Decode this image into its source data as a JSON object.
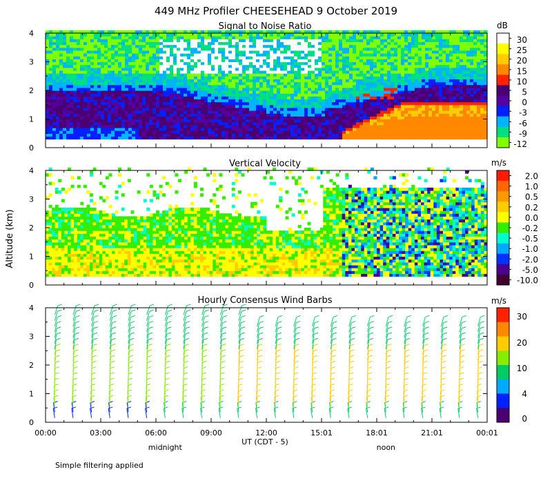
{
  "title": "449 MHz Profiler CHEESEHEAD  9 October 2019",
  "ylabel": "Altitude (km)",
  "xlabel": "UT  (CDT - 5)",
  "footnote": "Simple filtering applied",
  "x_ticks": [
    "00:00",
    "03:00",
    "06:00",
    "09:00",
    "12:00",
    "15:01",
    "18:01",
    "21:01",
    "00:01"
  ],
  "x_tick_hours": [
    0,
    3,
    6,
    9,
    12,
    15,
    18,
    21,
    24
  ],
  "local_labels": [
    {
      "text": "midnight",
      "hour": 6.5
    },
    {
      "text": "noon",
      "hour": 18.5
    }
  ],
  "chart_data": [
    {
      "type": "heatmap",
      "title": "Signal to Noise Ratio",
      "units": "dB",
      "xlim": [
        0,
        24
      ],
      "ylim": [
        0,
        4
      ],
      "y_ticks": [
        "0",
        "1",
        "2",
        "3",
        "4"
      ],
      "colorbar": {
        "labels": [
          "30",
          "25",
          "20",
          "15",
          "10",
          "5",
          "0",
          "-3",
          "-6",
          "-9",
          "-12"
        ],
        "colors": [
          "#ffffff",
          "#ffff00",
          "#ffcc00",
          "#ff8800",
          "#ff2200",
          "#4a0070",
          "#5500a0",
          "#0020ff",
          "#00b4ff",
          "#00e080",
          "#80ff00"
        ]
      }
    },
    {
      "type": "heatmap",
      "title": "Vertical Velocity",
      "units": "m/s",
      "xlim": [
        0,
        24
      ],
      "ylim": [
        0,
        4
      ],
      "y_ticks": [
        "0",
        "1",
        "2",
        "3",
        "4"
      ],
      "colorbar": {
        "labels": [
          "2.0",
          "1.0",
          "0.5",
          "0.2",
          "0.0",
          "-0.2",
          "-0.5",
          "-1.0",
          "-2.0",
          "-5.0",
          "-10.0"
        ],
        "colors": [
          "#ff1a00",
          "#ff6600",
          "#ff9900",
          "#ffcc00",
          "#ffff00",
          "#33ee00",
          "#00ffcc",
          "#00aaff",
          "#0033ff",
          "#4a0090",
          "#400030"
        ]
      }
    },
    {
      "type": "wind_barbs",
      "title": "Hourly Consensus Wind Barbs",
      "units": "m/s",
      "xlim": [
        0,
        24
      ],
      "ylim": [
        0,
        4
      ],
      "y_ticks": [
        "0",
        "1",
        "2",
        "3",
        "4"
      ],
      "colorbar": {
        "labels": [
          "30",
          "20",
          "10",
          "4",
          "0"
        ],
        "colors": [
          "#ff2200",
          "#ff8800",
          "#ffcc00",
          "#88ee00",
          "#00cc66",
          "#00aaff",
          "#0022ff",
          "#4a0070"
        ]
      }
    }
  ]
}
